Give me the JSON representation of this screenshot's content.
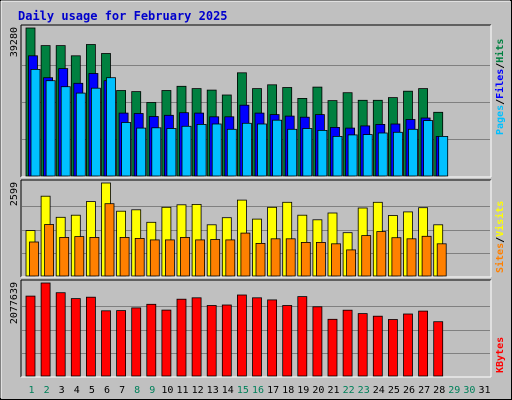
{
  "colors": {
    "background": "#c0c0c0",
    "plot_background": "#c0c0c0",
    "gridline": "#808080",
    "title": "#0000cc",
    "hits": "#008040",
    "files": "#0000ff",
    "pages": "#00c0ff",
    "visits": "#ffff00",
    "sites": "#ff8000",
    "kbytes": "#ff0000",
    "weekday_label": "#000000",
    "weekend_label": "#00805a"
  },
  "chart_data": {
    "type": "bar",
    "title": "Daily usage for February 2025",
    "x": [
      "1",
      "2",
      "3",
      "4",
      "5",
      "6",
      "7",
      "8",
      "9",
      "10",
      "11",
      "12",
      "13",
      "14",
      "15",
      "16",
      "17",
      "18",
      "19",
      "20",
      "21",
      "22",
      "23",
      "24",
      "25",
      "26",
      "27",
      "28",
      "29",
      "30",
      "31"
    ],
    "weekend_days": [
      "1",
      "2",
      "8",
      "9",
      "15",
      "16",
      "22",
      "23",
      "29",
      "30"
    ],
    "panels": [
      {
        "id": "hits-files-pages",
        "max_label": "39280",
        "ylim": [
          0,
          39280
        ],
        "legend": [
          {
            "text": "Pages",
            "color": "#00c0ff"
          },
          {
            "text": "/",
            "color": "#000000"
          },
          {
            "text": "Files",
            "color": "#0000ff"
          },
          {
            "text": "/",
            "color": "#000000"
          },
          {
            "text": "Hits",
            "color": "#008040"
          }
        ],
        "series": [
          {
            "name": "Hits",
            "color": "#008040",
            "values": [
              39280,
              34600,
              34600,
              31900,
              34900,
              32500,
              22700,
              22400,
              19500,
              22700,
              23800,
              23200,
              22800,
              21500,
              27400,
              23200,
              24200,
              23500,
              20600,
              23600,
              20000,
              22100,
              20100,
              20100,
              20800,
              22500,
              23200,
              16900
            ]
          },
          {
            "name": "Files",
            "color": "#0000ff",
            "values": [
              31900,
              26100,
              28500,
              24600,
              27200,
              25300,
              16700,
              16600,
              15800,
              16100,
              16800,
              16700,
              15700,
              15700,
              18800,
              16700,
              16300,
              15900,
              15600,
              16300,
              12900,
              12700,
              13300,
              13700,
              13800,
              15000,
              15400,
              10500
            ]
          },
          {
            "name": "Pages",
            "color": "#00c0ff",
            "values": [
              28300,
              25300,
              23700,
              22000,
              23300,
              26100,
              14200,
              12700,
              12800,
              12600,
              13200,
              13700,
              13800,
              12400,
              14000,
              13800,
              14800,
              12400,
              12600,
              12100,
              10500,
              10900,
              11000,
              11400,
              11600,
              12400,
              14700,
              10500
            ]
          }
        ]
      },
      {
        "id": "visits-sites",
        "max_label": "2599",
        "ylim": [
          0,
          2599
        ],
        "legend": [
          {
            "text": "Sites",
            "color": "#ff8000"
          },
          {
            "text": "/",
            "color": "#000000"
          },
          {
            "text": "Visits",
            "color": "#ffff00"
          }
        ],
        "series": [
          {
            "name": "Visits",
            "color": "#ffff00",
            "values": [
              1270,
              2230,
              1640,
              1700,
              2080,
              2599,
              1810,
              1850,
              1500,
              1920,
              1990,
              2000,
              1430,
              1630,
              2120,
              1590,
              1920,
              2060,
              1700,
              1570,
              1760,
              1210,
              1900,
              2060,
              1690,
              1790,
              1910,
              1430
            ]
          },
          {
            "name": "Sites",
            "color": "#ff8000",
            "values": [
              950,
              1440,
              1080,
              1100,
              1080,
              2020,
              1080,
              1050,
              1010,
              1010,
              1080,
              1010,
              1020,
              1010,
              1200,
              910,
              1040,
              1040,
              940,
              940,
              900,
              730,
              1130,
              1240,
              1070,
              1040,
              1110,
              900
            ]
          }
        ]
      },
      {
        "id": "kbytes",
        "max_label": "2077639",
        "ylim": [
          0,
          2077639
        ],
        "legend": [
          {
            "text": "KBytes",
            "color": "#ff0000"
          }
        ],
        "series": [
          {
            "name": "KBytes",
            "color": "#ff0000",
            "values": [
              1784000,
              2077639,
              1862000,
              1730000,
              1760000,
              1456000,
              1461000,
              1521000,
              1602000,
              1472000,
              1716000,
              1747000,
              1576000,
              1586000,
              1810000,
              1746000,
              1700000,
              1576000,
              1774000,
              1546000,
              1266000,
              1470000,
              1394000,
              1336000,
              1262000,
              1386000,
              1450000,
              1212000
            ]
          }
        ]
      }
    ]
  }
}
